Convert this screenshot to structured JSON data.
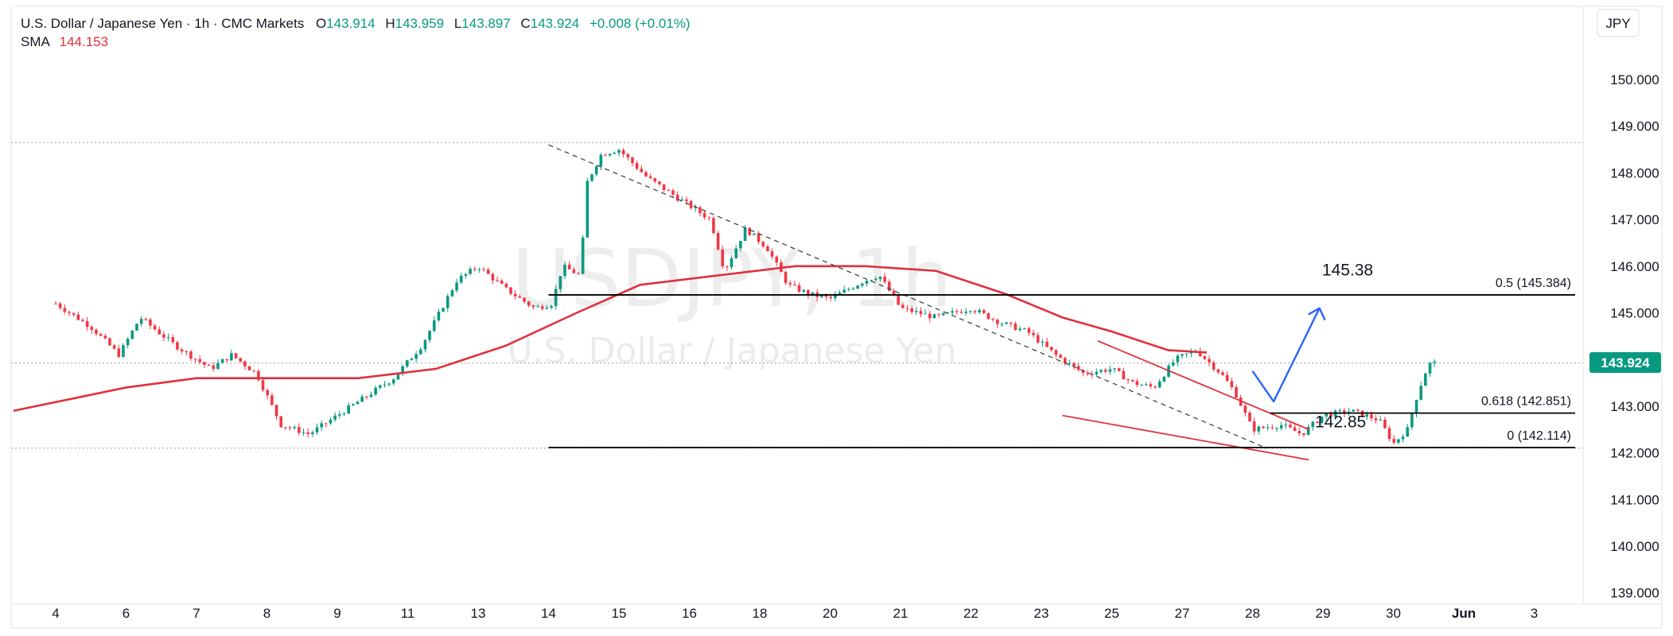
{
  "header": {
    "symbol": "U.S. Dollar / Japanese Yen · 1h · CMC Markets",
    "o_label": "O",
    "o_value": "143.914",
    "h_label": "H",
    "h_value": "143.959",
    "l_label": "L",
    "l_value": "143.897",
    "c_label": "C",
    "c_value": "143.924",
    "change": "+0.008 (+0.01%)",
    "sma_label": "SMA",
    "sma_value": "144.153",
    "currency": "JPY"
  },
  "watermark": {
    "ticker": "USDJPY, 1h",
    "name": "U.S. Dollar / Japanese Yen"
  },
  "colors": {
    "up": "#089981",
    "down": "#f23645",
    "sma": "#e0313b",
    "level": "#000000",
    "dotted": "#9e9e9e",
    "wedge": "#e0313b",
    "arrow": "#2962ff",
    "price_tag": "#089981"
  },
  "chart_data": {
    "type": "candlestick",
    "symbol": "USDJPY",
    "timeframe": "1h",
    "x_ticks": [
      "4",
      "6",
      "7",
      "8",
      "9",
      "11",
      "13",
      "14",
      "15",
      "16",
      "18",
      "20",
      "21",
      "22",
      "23",
      "25",
      "27",
      "28",
      "29",
      "30",
      "Jun",
      "3"
    ],
    "y_ticks": [
      "150.000",
      "149.000",
      "148.000",
      "147.000",
      "146.000",
      "145.000",
      "144.000",
      "143.000",
      "142.000",
      "141.000",
      "140.000",
      "139.000"
    ],
    "ylim": [
      138.55,
      150.9
    ],
    "last_price": "143.924",
    "price_path": [
      [
        0,
        145.2
      ],
      [
        0.5,
        144.7
      ],
      [
        0.9,
        144.1
      ],
      [
        1.2,
        144.9
      ],
      [
        1.7,
        144.3
      ],
      [
        2.2,
        143.8
      ],
      [
        2.5,
        144.1
      ],
      [
        2.85,
        143.7
      ],
      [
        3.2,
        142.6
      ],
      [
        3.6,
        142.4
      ],
      [
        4.0,
        142.8
      ],
      [
        4.4,
        143.2
      ],
      [
        4.8,
        143.6
      ],
      [
        5.2,
        144.3
      ],
      [
        5.7,
        145.7
      ],
      [
        6.0,
        146.0
      ],
      [
        6.4,
        145.5
      ],
      [
        6.8,
        145.1
      ],
      [
        7.05,
        145.2
      ],
      [
        7.2,
        146.0
      ],
      [
        7.45,
        145.8
      ],
      [
        7.55,
        147.8
      ],
      [
        7.75,
        148.4
      ],
      [
        8.0,
        148.5
      ],
      [
        8.4,
        147.9
      ],
      [
        8.8,
        147.5
      ],
      [
        9.3,
        147.0
      ],
      [
        9.5,
        145.9
      ],
      [
        9.8,
        146.8
      ],
      [
        10.1,
        146.4
      ],
      [
        10.4,
        145.6
      ],
      [
        10.7,
        145.4
      ],
      [
        11.0,
        145.3
      ],
      [
        11.5,
        145.7
      ],
      [
        11.7,
        145.8
      ],
      [
        12.0,
        145.1
      ],
      [
        12.5,
        144.9
      ],
      [
        13.0,
        145.1
      ],
      [
        13.4,
        144.8
      ],
      [
        13.8,
        144.6
      ],
      [
        14.2,
        144.1
      ],
      [
        14.6,
        143.7
      ],
      [
        15.0,
        143.8
      ],
      [
        15.3,
        143.5
      ],
      [
        15.6,
        143.4
      ],
      [
        15.9,
        144.0
      ],
      [
        16.2,
        144.2
      ],
      [
        16.55,
        143.7
      ],
      [
        16.75,
        143.3
      ],
      [
        17.0,
        142.5
      ],
      [
        17.4,
        142.6
      ],
      [
        17.7,
        142.4
      ],
      [
        18.0,
        142.8
      ],
      [
        18.4,
        142.9
      ],
      [
        18.8,
        142.7
      ],
      [
        19.0,
        142.2
      ],
      [
        19.2,
        142.5
      ],
      [
        19.35,
        143.3
      ],
      [
        19.5,
        143.9
      ],
      [
        19.6,
        143.92
      ]
    ],
    "sma": {
      "name": "SMA",
      "value": "144.153",
      "points": [
        [
          -0.6,
          142.9
        ],
        [
          1.0,
          143.4
        ],
        [
          2.0,
          143.6
        ],
        [
          3.0,
          143.6
        ],
        [
          4.3,
          143.6
        ],
        [
          5.4,
          143.8
        ],
        [
          6.4,
          144.3
        ],
        [
          7.4,
          145.0
        ],
        [
          8.3,
          145.6
        ],
        [
          9.4,
          145.8
        ],
        [
          10.5,
          146.0
        ],
        [
          11.5,
          146.0
        ],
        [
          12.5,
          145.9
        ],
        [
          13.5,
          145.4
        ],
        [
          14.3,
          144.9
        ],
        [
          15.0,
          144.6
        ],
        [
          15.8,
          144.2
        ],
        [
          16.35,
          144.15
        ]
      ]
    },
    "horizontal_levels": [
      {
        "label": "0.5 (145.384)",
        "price": 145.384,
        "from_x": 7.0
      },
      {
        "label": "0.618 (142.851)",
        "price": 142.851,
        "from_x": 17.25
      },
      {
        "label": "0 (142.114)",
        "price": 142.114,
        "from_x": 7.0
      }
    ],
    "dotted_levels": [
      148.65,
      143.924,
      142.1
    ],
    "trendline_dashed": [
      [
        7.0,
        148.6
      ],
      [
        17.2,
        142.1
      ]
    ],
    "wedge_upper": [
      [
        14.8,
        144.4
      ],
      [
        17.8,
        142.5
      ]
    ],
    "wedge_lower": [
      [
        14.3,
        142.8
      ],
      [
        17.8,
        141.85
      ]
    ],
    "projection_arrow": [
      [
        17.3,
        143.1
      ],
      [
        17.95,
        145.1
      ]
    ],
    "annotations": [
      {
        "text": "145.38",
        "x": 18.35,
        "price": 145.8
      },
      {
        "text": "142.85",
        "x": 18.25,
        "price": 142.55
      }
    ]
  }
}
